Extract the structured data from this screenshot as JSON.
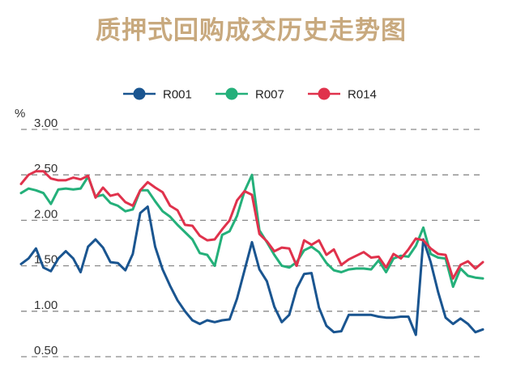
{
  "chart_data": {
    "type": "line",
    "title": "质押式回购成交历史走势图",
    "ylabel": "%",
    "xlabel": "",
    "ylim": [
      0.5,
      3.0
    ],
    "yticks": [
      "0.50",
      "1.00",
      "1.50",
      "2.00",
      "2.50",
      "3.00"
    ],
    "grid": true,
    "legend_position": "top-center",
    "series": [
      {
        "name": "R001",
        "color": "#1a5590",
        "values": [
          1.52,
          1.58,
          1.69,
          1.48,
          1.44,
          1.58,
          1.66,
          1.58,
          1.43,
          1.71,
          1.79,
          1.7,
          1.54,
          1.53,
          1.45,
          1.63,
          2.08,
          2.15,
          1.71,
          1.46,
          1.28,
          1.12,
          1.0,
          0.9,
          0.86,
          0.9,
          0.88,
          0.9,
          0.91,
          1.14,
          1.45,
          1.76,
          1.46,
          1.33,
          1.05,
          0.88,
          0.96,
          1.25,
          1.41,
          1.42,
          1.04,
          0.84,
          0.77,
          0.78,
          0.96,
          0.96,
          0.96,
          0.96,
          0.94,
          0.93,
          0.93,
          0.94,
          0.94,
          0.74,
          1.79,
          1.54,
          1.21,
          0.93,
          0.86,
          0.92,
          0.86,
          0.77,
          0.8
        ]
      },
      {
        "name": "R007",
        "color": "#24b07a",
        "values": [
          2.3,
          2.35,
          2.33,
          2.3,
          2.18,
          2.34,
          2.35,
          2.34,
          2.35,
          2.48,
          2.26,
          2.28,
          2.19,
          2.16,
          2.1,
          2.12,
          2.33,
          2.33,
          2.21,
          2.1,
          2.04,
          1.95,
          1.87,
          1.79,
          1.64,
          1.62,
          1.5,
          1.84,
          1.88,
          2.05,
          2.32,
          2.5,
          1.89,
          1.76,
          1.62,
          1.5,
          1.48,
          1.54,
          1.67,
          1.71,
          1.65,
          1.53,
          1.45,
          1.43,
          1.46,
          1.47,
          1.47,
          1.46,
          1.56,
          1.43,
          1.58,
          1.61,
          1.6,
          1.72,
          1.92,
          1.63,
          1.59,
          1.58,
          1.27,
          1.47,
          1.39,
          1.37,
          1.36
        ]
      },
      {
        "name": "R014",
        "color": "#e0324c",
        "values": [
          2.4,
          2.5,
          2.54,
          2.54,
          2.46,
          2.44,
          2.44,
          2.47,
          2.45,
          2.49,
          2.25,
          2.36,
          2.27,
          2.29,
          2.2,
          2.16,
          2.33,
          2.42,
          2.36,
          2.31,
          2.16,
          2.11,
          1.95,
          1.94,
          1.83,
          1.78,
          1.79,
          1.9,
          2.0,
          2.22,
          2.32,
          2.28,
          1.85,
          1.77,
          1.66,
          1.7,
          1.69,
          1.5,
          1.78,
          1.73,
          1.78,
          1.62,
          1.68,
          1.51,
          1.57,
          1.61,
          1.65,
          1.59,
          1.6,
          1.48,
          1.63,
          1.58,
          1.68,
          1.8,
          1.78,
          1.69,
          1.63,
          1.62,
          1.36,
          1.51,
          1.55,
          1.47,
          1.54
        ]
      }
    ]
  }
}
